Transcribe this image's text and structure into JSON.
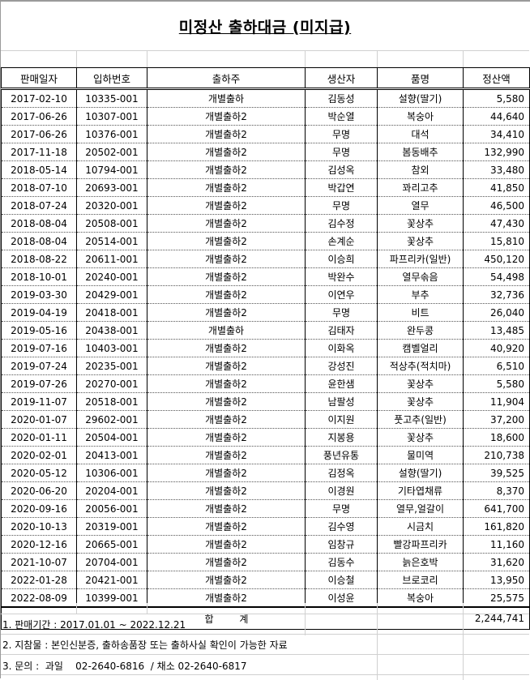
{
  "title": "미정산 출하대금 (미지급)",
  "columns": [
    "판매일자",
    "입하번호",
    "출하주",
    "생산자",
    "품명",
    "정산액"
  ],
  "rows": [
    [
      "2017-02-10",
      "10335-001",
      "개별출하",
      "김동성",
      "설향(딸기)",
      "5,580"
    ],
    [
      "2017-06-26",
      "10307-001",
      "개별출하2",
      "박순열",
      "복숭아",
      "44,640"
    ],
    [
      "2017-06-26",
      "10376-001",
      "개별출하2",
      "무명",
      "대석",
      "34,410"
    ],
    [
      "2017-11-18",
      "20502-001",
      "개별출하2",
      "무명",
      "봄동배추",
      "132,990"
    ],
    [
      "2018-05-14",
      "10794-001",
      "개별출하2",
      "김성옥",
      "참외",
      "33,480"
    ],
    [
      "2018-07-10",
      "20693-001",
      "개별출하2",
      "박갑연",
      "꽈리고추",
      "41,850"
    ],
    [
      "2018-07-24",
      "20320-001",
      "개별출하2",
      "무명",
      "열무",
      "46,500"
    ],
    [
      "2018-08-04",
      "20508-001",
      "개별출하2",
      "김수정",
      "꽃상추",
      "47,430"
    ],
    [
      "2018-08-04",
      "20514-001",
      "개별출하2",
      "손계순",
      "꽃상추",
      "15,810"
    ],
    [
      "2018-08-22",
      "20611-001",
      "개별출하2",
      "이승희",
      "파프리카(일반)",
      "450,120"
    ],
    [
      "2018-10-01",
      "20240-001",
      "개별출하2",
      "박완수",
      "열무솎음",
      "54,498"
    ],
    [
      "2019-03-30",
      "20429-001",
      "개별출하2",
      "이연우",
      "부추",
      "32,736"
    ],
    [
      "2019-04-19",
      "20418-001",
      "개별출하2",
      "무명",
      "비트",
      "26,040"
    ],
    [
      "2019-05-16",
      "20438-001",
      "개별출하",
      "김태자",
      "완두콩",
      "13,485"
    ],
    [
      "2019-07-16",
      "10403-001",
      "개별출하2",
      "이화옥",
      "캠벨얼리",
      "40,920"
    ],
    [
      "2019-07-24",
      "20235-001",
      "개별출하2",
      "강성진",
      "적상추(적치마)",
      "6,510"
    ],
    [
      "2019-07-26",
      "20270-001",
      "개별출하2",
      "윤한샘",
      "꽃상추",
      "5,580"
    ],
    [
      "2019-11-07",
      "20518-001",
      "개별출하2",
      "남팔성",
      "꽃상추",
      "11,904"
    ],
    [
      "2020-01-07",
      "29602-001",
      "개별출하2",
      "이지원",
      "풋고추(일반)",
      "37,200"
    ],
    [
      "2020-01-11",
      "20504-001",
      "개별출하2",
      "지봉용",
      "꽃상추",
      "18,600"
    ],
    [
      "2020-02-01",
      "20413-001",
      "개별출하2",
      "풍년유통",
      "물미역",
      "210,738"
    ],
    [
      "2020-05-12",
      "10306-001",
      "개별출하2",
      "김정옥",
      "설향(딸기)",
      "39,525"
    ],
    [
      "2020-06-20",
      "20204-001",
      "개별출하2",
      "이경원",
      "기타엽채류",
      "8,370"
    ],
    [
      "2020-09-16",
      "20056-001",
      "개별출하2",
      "무명",
      "열무,얼갈이",
      "641,700"
    ],
    [
      "2020-10-13",
      "20319-001",
      "개별출하2",
      "김수영",
      "시금치",
      "161,820"
    ],
    [
      "2020-12-16",
      "20665-001",
      "개별출하2",
      "임창규",
      "빨강파프리카",
      "11,160"
    ],
    [
      "2021-10-07",
      "20704-001",
      "개별출하2",
      "김동수",
      "늙은호박",
      "31,620"
    ],
    [
      "2022-01-28",
      "20421-001",
      "개별출하2",
      "이승철",
      "브로코리",
      "13,950"
    ],
    [
      "2022-08-09",
      "10399-001",
      "개별출하2",
      "이성윤",
      "복숭아",
      "25,575"
    ]
  ],
  "total": {
    "label": "합 계",
    "value": "2,244,741"
  },
  "notes": [
    "1. 판매기간 : 2017.01.01 ~ 2022.12.21",
    "2. 지참물 : 본인신분증, 출하송품장 또는 출하사실 확인이 가능한 자료",
    "3. 문의 :  과일    02-2640-6816  / 채소 02-2640-6817"
  ]
}
